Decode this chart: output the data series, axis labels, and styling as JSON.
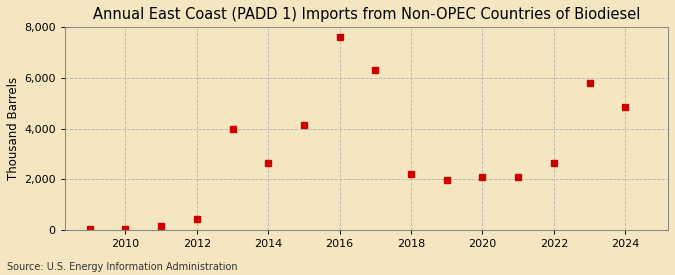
{
  "title": "Annual East Coast (PADD 1) Imports from Non-OPEC Countries of Biodiesel",
  "ylabel": "Thousand Barrels",
  "source": "Source: U.S. Energy Information Administration",
  "background_color": "#f5e6c2",
  "plot_bg_color": "#f5e6c2",
  "marker_color": "#cc0000",
  "grid_color": "#b0b0b0",
  "spine_color": "#888888",
  "years": [
    2009,
    2010,
    2011,
    2012,
    2013,
    2014,
    2015,
    2016,
    2017,
    2018,
    2019,
    2020,
    2021,
    2022,
    2023,
    2024
  ],
  "values": [
    30,
    50,
    130,
    430,
    4000,
    2650,
    4150,
    7600,
    6300,
    2200,
    1980,
    2100,
    2080,
    2620,
    5800,
    4850
  ],
  "xlim": [
    2008.3,
    2025.2
  ],
  "ylim": [
    0,
    8000
  ],
  "yticks": [
    0,
    2000,
    4000,
    6000,
    8000
  ],
  "xticks": [
    2010,
    2012,
    2014,
    2016,
    2018,
    2020,
    2022,
    2024
  ],
  "title_fontsize": 10.5,
  "label_fontsize": 8.5,
  "tick_fontsize": 8.0,
  "source_fontsize": 7.0
}
